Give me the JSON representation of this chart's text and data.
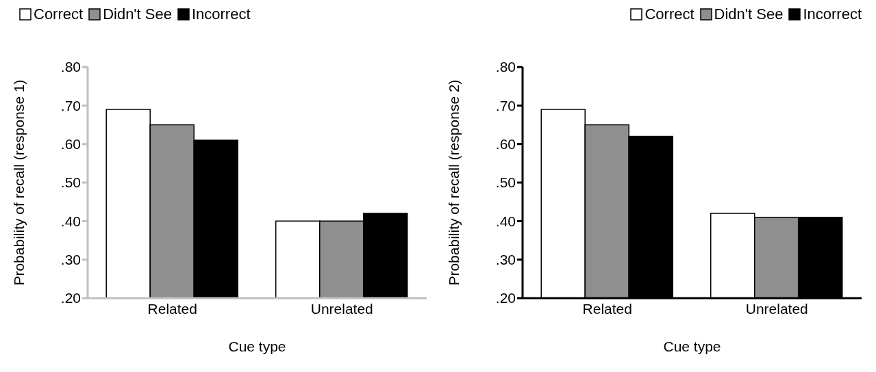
{
  "chart_data": [
    {
      "type": "bar",
      "categories": [
        "Related",
        "Unrelated"
      ],
      "xlabel": "Cue type",
      "ylabel": "Probability of recall (response 1)",
      "ylim": [
        0.2,
        0.8
      ],
      "yticks": [
        {
          "value": 0.2,
          "label": ".20"
        },
        {
          "value": 0.3,
          "label": ".30"
        },
        {
          "value": 0.4,
          "label": ".40"
        },
        {
          "value": 0.5,
          "label": ".50"
        },
        {
          "value": 0.6,
          "label": ".60"
        },
        {
          "value": 0.7,
          "label": ".70"
        },
        {
          "value": 0.8,
          "label": ".80"
        }
      ],
      "legend": "top left",
      "grid": false,
      "series": [
        {
          "name": "Correct",
          "color": "#ffffff",
          "values": [
            0.69,
            0.4
          ]
        },
        {
          "name": "Didn't See",
          "color": "#8f8f8f",
          "values": [
            0.65,
            0.4
          ]
        },
        {
          "name": "Incorrect",
          "color": "#000000",
          "values": [
            0.61,
            0.42
          ]
        }
      ]
    },
    {
      "type": "bar",
      "categories": [
        "Related",
        "Unrelated"
      ],
      "xlabel": "Cue type",
      "ylabel": "Probability of recall (response 2)",
      "ylim": [
        0.2,
        0.8
      ],
      "yticks": [
        {
          "value": 0.2,
          "label": ".20"
        },
        {
          "value": 0.3,
          "label": ".30"
        },
        {
          "value": 0.4,
          "label": ".40"
        },
        {
          "value": 0.5,
          "label": ".50"
        },
        {
          "value": 0.6,
          "label": ".60"
        },
        {
          "value": 0.7,
          "label": ".70"
        },
        {
          "value": 0.8,
          "label": ".80"
        }
      ],
      "legend": "top right",
      "grid": false,
      "series": [
        {
          "name": "Correct",
          "color": "#ffffff",
          "values": [
            0.69,
            0.42
          ]
        },
        {
          "name": "Didn't See",
          "color": "#8f8f8f",
          "values": [
            0.65,
            0.41
          ]
        },
        {
          "name": "Incorrect",
          "color": "#000000",
          "values": [
            0.62,
            0.41
          ]
        }
      ]
    }
  ]
}
